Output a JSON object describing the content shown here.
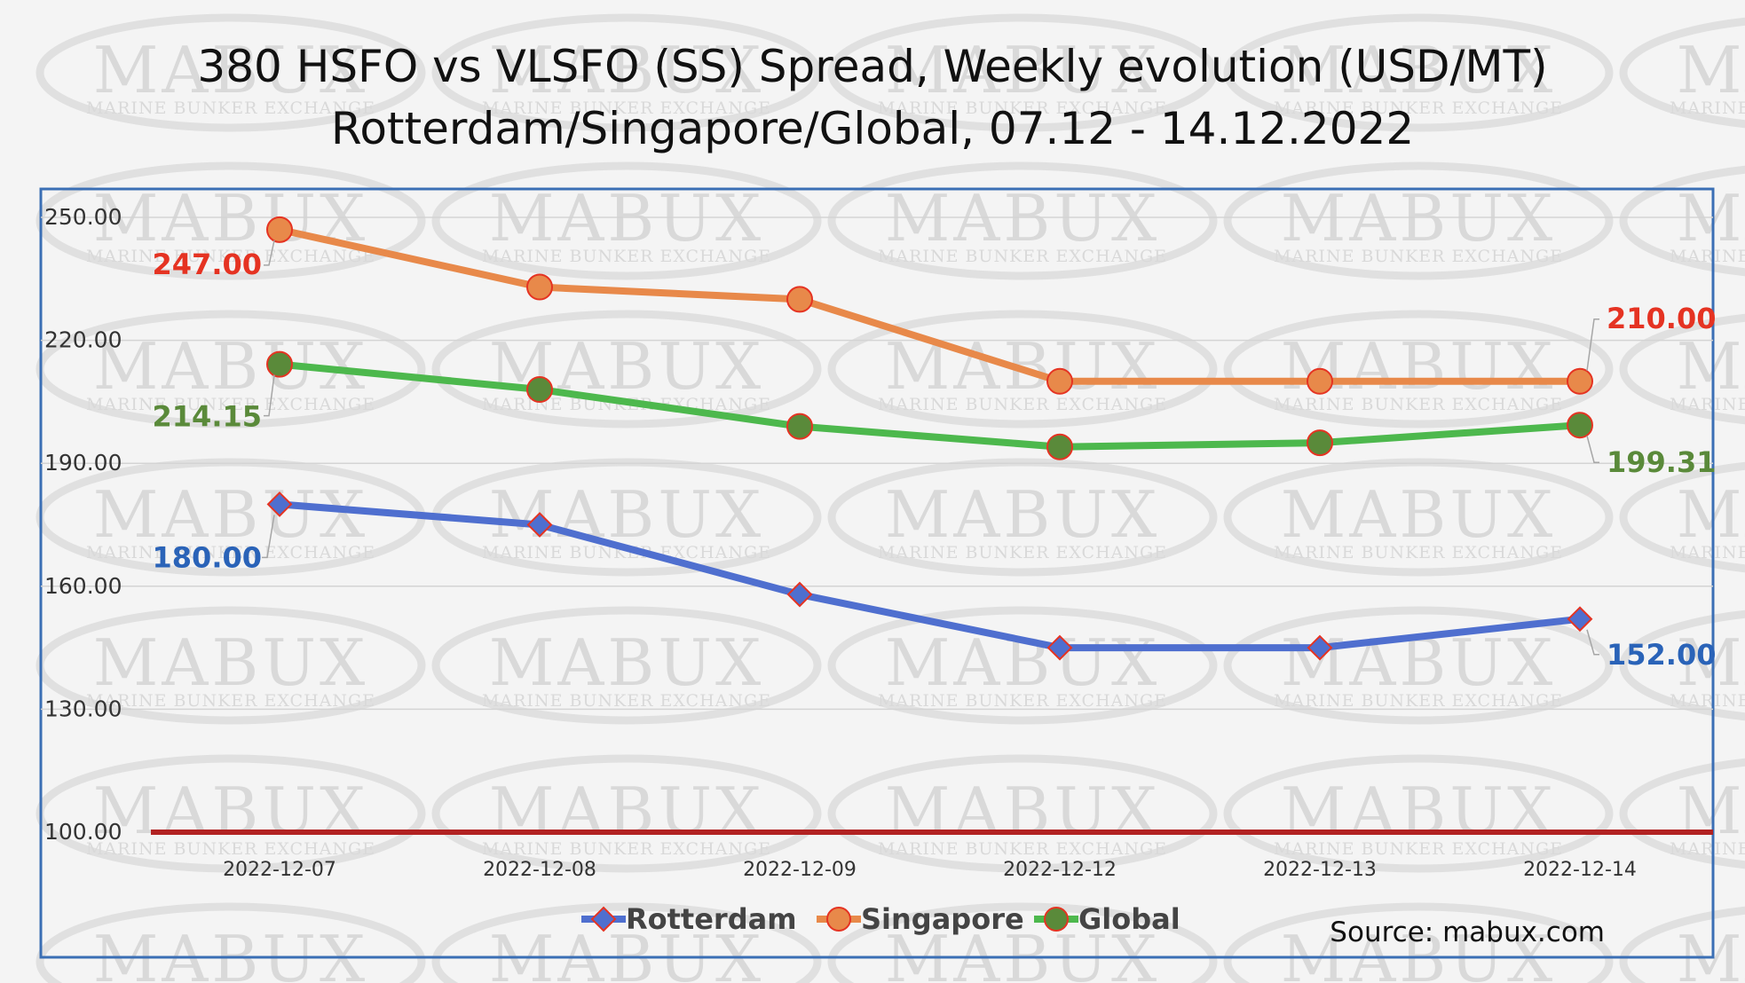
{
  "chart_data": {
    "type": "line",
    "title": [
      "380 HSFO vs VLSFO (SS) Spread, Weekly evolution (USD/MT)",
      "Rotterdam/Singapore/Global, 07.12 - 14.12.2022"
    ],
    "categories": [
      "2022-12-07",
      "2022-12-08",
      "2022-12-09",
      "2022-12-12",
      "2022-12-13",
      "2022-12-14"
    ],
    "y_ticks": [
      "100.00",
      "130.00",
      "160.00",
      "190.00",
      "220.00",
      "250.00"
    ],
    "ylim": [
      100,
      250
    ],
    "grid": true,
    "reference_line": {
      "value": 100,
      "color": "#b22222"
    },
    "legend_position": "bottom",
    "series": [
      {
        "name": "Rotterdam",
        "values": [
          180,
          175,
          158,
          145,
          145,
          152
        ],
        "line_color": "#4f6fcf",
        "marker": "diamond",
        "marker_fill": "#4f6fcf",
        "labels": [
          {
            "index": 0,
            "text": "180.00",
            "color": "#2a63b8"
          },
          {
            "index": 5,
            "text": "152.00",
            "color": "#2a63b8"
          }
        ]
      },
      {
        "name": "Singapore",
        "values": [
          247,
          233,
          230,
          210,
          210,
          210
        ],
        "line_color": "#e8894a",
        "marker": "circle",
        "marker_fill": "#e8894a",
        "labels": [
          {
            "index": 0,
            "text": "247.00",
            "color": "#e53322"
          },
          {
            "index": 5,
            "text": "210.00",
            "color": "#e53322"
          }
        ]
      },
      {
        "name": "Global",
        "values": [
          214.15,
          208,
          199,
          194,
          195,
          199.31
        ],
        "line_color": "#4db84d",
        "marker": "circle",
        "marker_fill": "#5a8a3a",
        "labels": [
          {
            "index": 0,
            "text": "214.15",
            "color": "#5a8a3a"
          },
          {
            "index": 5,
            "text": "199.31",
            "color": "#5a8a3a"
          }
        ]
      }
    ],
    "source": "Source: mabux.com"
  },
  "watermark": {
    "brand": "MABUX",
    "tagline": "MARINE BUNKER EXCHANGE"
  },
  "colors": {
    "frame": "#3b6fb5",
    "grid": "#d4d4d4",
    "background": "#f4f4f4"
  }
}
